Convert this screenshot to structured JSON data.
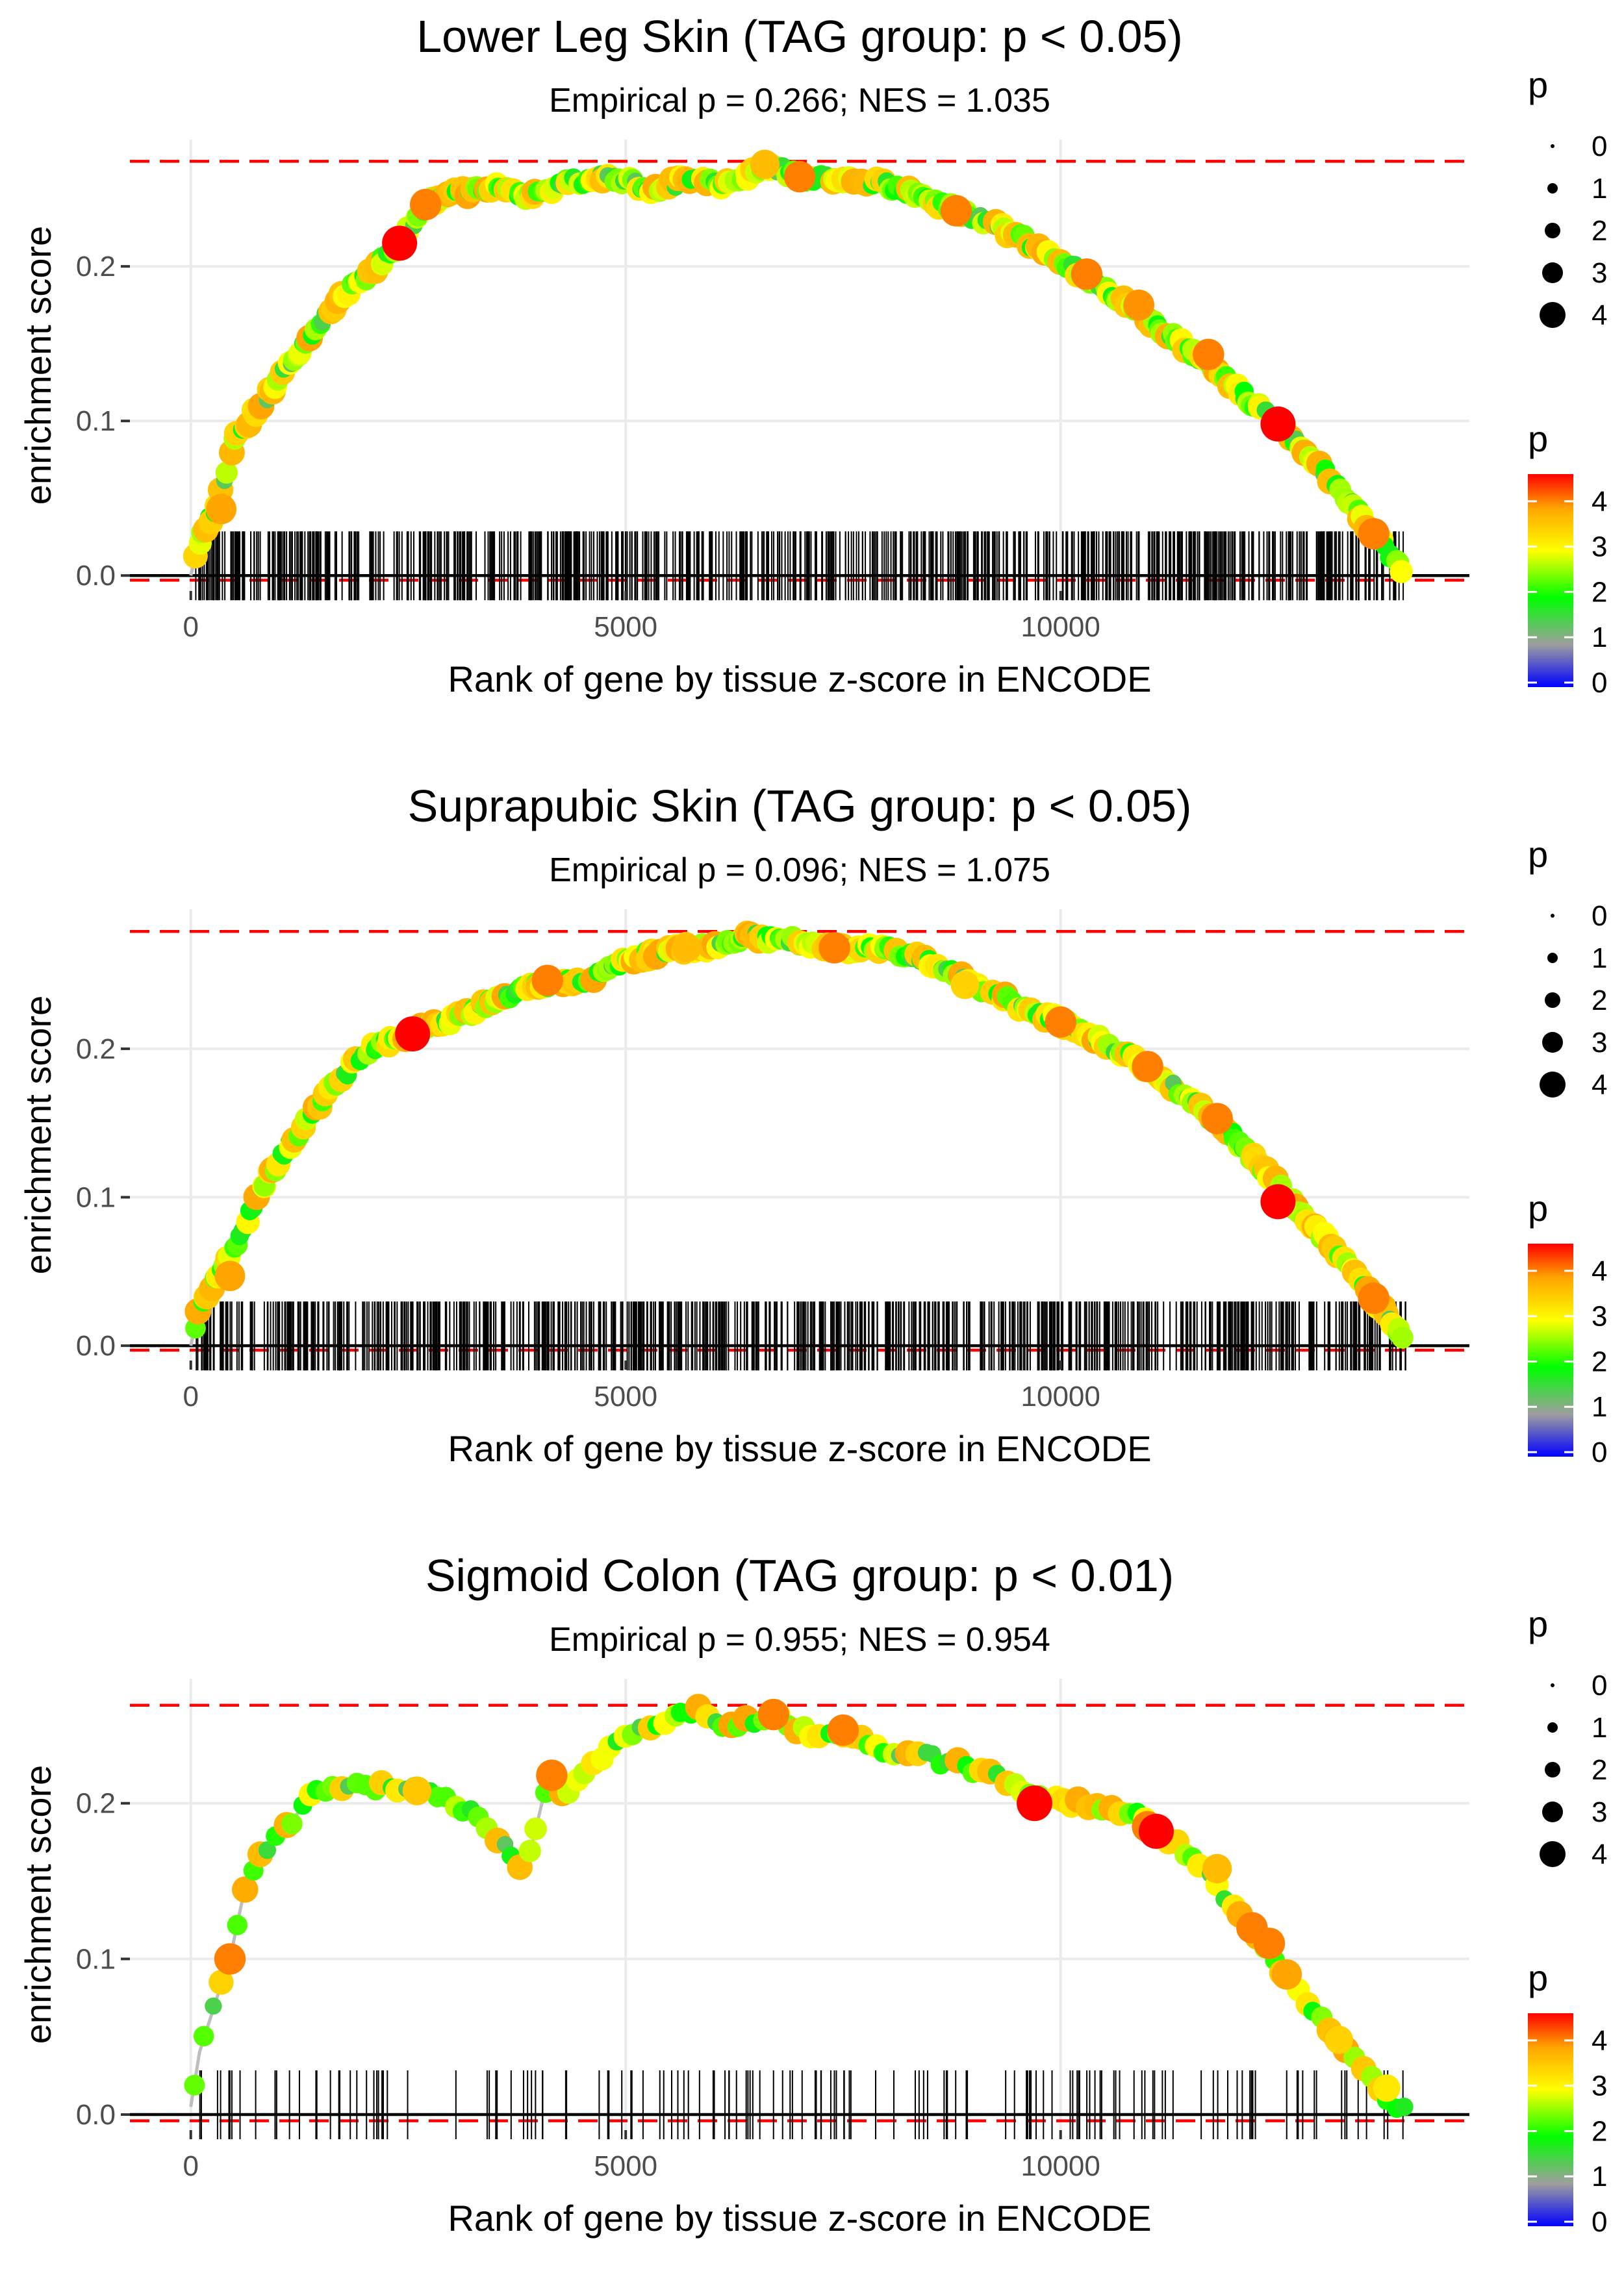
{
  "colors": {
    "threshold_line": "#ff0000",
    "zero_line": "#000000",
    "grid": "#ebebeb",
    "running_line": "#bebebe",
    "gradient": [
      "#0000ff",
      "#9e9e9e",
      "#00ff00",
      "#ffff00",
      "#ffa500",
      "#ff0000"
    ]
  },
  "chart_data": [
    {
      "type": "scatter",
      "title": "Lower Leg Skin (TAG group: p < 0.05)",
      "subtitle": "Empirical p = 0.266; NES = 1.035",
      "xlabel": "Rank of gene by tissue z-score in ENCODE",
      "ylabel": "enrichment score",
      "xlim": [
        -700,
        14700
      ],
      "ylim": [
        -0.01,
        0.282
      ],
      "x_ticks": [
        0,
        5000,
        10000
      ],
      "x_tick_labels": [
        "0",
        "5000",
        "10000"
      ],
      "y_ticks": [
        0.0,
        0.1,
        0.2
      ],
      "y_tick_labels": [
        "0.0",
        "0.1",
        "0.2"
      ],
      "max_es": 0.268,
      "min_es": -0.003,
      "n_max": 13980,
      "curve": [
        [
          0,
          0
        ],
        [
          100,
          0.022
        ],
        [
          300,
          0.045
        ],
        [
          500,
          0.088
        ],
        [
          900,
          0.118
        ],
        [
          1300,
          0.15
        ],
        [
          1700,
          0.178
        ],
        [
          2100,
          0.198
        ],
        [
          2400,
          0.215
        ],
        [
          2700,
          0.24
        ],
        [
          3000,
          0.246
        ],
        [
          3500,
          0.252
        ],
        [
          3900,
          0.245
        ],
        [
          4300,
          0.254
        ],
        [
          4800,
          0.258
        ],
        [
          5300,
          0.25
        ],
        [
          5800,
          0.258
        ],
        [
          6200,
          0.252
        ],
        [
          6600,
          0.266
        ],
        [
          7000,
          0.258
        ],
        [
          7500,
          0.256
        ],
        [
          8000,
          0.253
        ],
        [
          8500,
          0.243
        ],
        [
          9000,
          0.232
        ],
        [
          9500,
          0.22
        ],
        [
          10000,
          0.204
        ],
        [
          10500,
          0.186
        ],
        [
          11000,
          0.166
        ],
        [
          11500,
          0.145
        ],
        [
          12000,
          0.122
        ],
        [
          12500,
          0.098
        ],
        [
          13000,
          0.07
        ],
        [
          13500,
          0.035
        ],
        [
          13800,
          0.012
        ],
        [
          13980,
          0
        ]
      ],
      "highlights": [
        [
          350,
          0.043,
          3.6
        ],
        [
          2400,
          0.215,
          4.5
        ],
        [
          2700,
          0.24,
          3.8
        ],
        [
          6600,
          0.266,
          3.4
        ],
        [
          7000,
          0.258,
          3.8
        ],
        [
          8800,
          0.236,
          3.8
        ],
        [
          10300,
          0.195,
          3.8
        ],
        [
          10900,
          0.175,
          3.7
        ],
        [
          11700,
          0.143,
          3.8
        ],
        [
          12500,
          0.098,
          4.5
        ],
        [
          13600,
          0.027,
          3.8
        ]
      ],
      "n_points": 380,
      "n_ticks": 720,
      "seed": 11,
      "legend": {
        "size_title": "p",
        "size_labels": [
          "0",
          "1",
          "2",
          "3",
          "4"
        ],
        "color_title": "p",
        "color_labels": [
          "4",
          "3",
          "2",
          "1",
          "0"
        ]
      }
    },
    {
      "type": "scatter",
      "title": "Suprapubic Skin (TAG group: p < 0.05)",
      "subtitle": "Empirical p = 0.096; NES = 1.075",
      "xlabel": "Rank of gene by tissue z-score in ENCODE",
      "ylabel": "enrichment score",
      "xlim": [
        -700,
        14700
      ],
      "ylim": [
        -0.01,
        0.294
      ],
      "x_ticks": [
        0,
        5000,
        10000
      ],
      "x_tick_labels": [
        "0",
        "5000",
        "10000"
      ],
      "y_ticks": [
        0.0,
        0.1,
        0.2
      ],
      "y_tick_labels": [
        "0.0",
        "0.1",
        "0.2"
      ],
      "max_es": 0.279,
      "min_es": -0.003,
      "n_max": 14000,
      "curve": [
        [
          0,
          0
        ],
        [
          100,
          0.025
        ],
        [
          300,
          0.045
        ],
        [
          500,
          0.065
        ],
        [
          800,
          0.105
        ],
        [
          1200,
          0.14
        ],
        [
          1600,
          0.172
        ],
        [
          2000,
          0.198
        ],
        [
          2500,
          0.21
        ],
        [
          3000,
          0.22
        ],
        [
          3500,
          0.232
        ],
        [
          4000,
          0.243
        ],
        [
          4500,
          0.245
        ],
        [
          5000,
          0.258
        ],
        [
          5500,
          0.268
        ],
        [
          6000,
          0.268
        ],
        [
          6400,
          0.276
        ],
        [
          7000,
          0.272
        ],
        [
          7500,
          0.268
        ],
        [
          8000,
          0.268
        ],
        [
          8500,
          0.258
        ],
        [
          9000,
          0.243
        ],
        [
          9500,
          0.23
        ],
        [
          10000,
          0.218
        ],
        [
          10500,
          0.204
        ],
        [
          11000,
          0.188
        ],
        [
          11500,
          0.165
        ],
        [
          12000,
          0.14
        ],
        [
          12500,
          0.108
        ],
        [
          13000,
          0.075
        ],
        [
          13500,
          0.04
        ],
        [
          13900,
          0.008
        ],
        [
          14000,
          0
        ]
      ],
      "highlights": [
        [
          450,
          0.047,
          3.6
        ],
        [
          2550,
          0.21,
          4.5
        ],
        [
          4100,
          0.246,
          3.8
        ],
        [
          5700,
          0.268,
          3.4
        ],
        [
          7400,
          0.268,
          3.8
        ],
        [
          8900,
          0.243,
          3.2
        ],
        [
          10000,
          0.218,
          3.8
        ],
        [
          11000,
          0.188,
          3.8
        ],
        [
          11800,
          0.153,
          3.8
        ],
        [
          12500,
          0.097,
          4.5
        ],
        [
          13600,
          0.032,
          3.8
        ]
      ],
      "n_points": 380,
      "n_ticks": 760,
      "seed": 23,
      "legend": {
        "size_title": "p",
        "size_labels": [
          "0",
          "1",
          "2",
          "3",
          "4"
        ],
        "color_title": "p",
        "color_labels": [
          "4",
          "3",
          "2",
          "1",
          "0"
        ]
      }
    },
    {
      "type": "scatter",
      "title": "Sigmoid Colon (TAG group: p < 0.01)",
      "subtitle": "Empirical p = 0.955; NES = 0.954",
      "xlabel": "Rank of gene by tissue z-score in ENCODE",
      "ylabel": "enrichment score",
      "xlim": [
        -700,
        14700
      ],
      "ylim": [
        -0.01,
        0.28
      ],
      "x_ticks": [
        0,
        5000,
        10000
      ],
      "x_tick_labels": [
        "0",
        "5000",
        "10000"
      ],
      "y_ticks": [
        0.0,
        0.1,
        0.2
      ],
      "y_tick_labels": [
        "0.0",
        "0.1",
        "0.2"
      ],
      "max_es": 0.263,
      "min_es": -0.004,
      "n_max": 14000,
      "curve": [
        [
          0,
          0.005
        ],
        [
          100,
          0.04
        ],
        [
          300,
          0.075
        ],
        [
          450,
          0.1
        ],
        [
          600,
          0.14
        ],
        [
          800,
          0.165
        ],
        [
          1100,
          0.185
        ],
        [
          1400,
          0.205
        ],
        [
          1700,
          0.21
        ],
        [
          2000,
          0.212
        ],
        [
          2300,
          0.21
        ],
        [
          2600,
          0.208
        ],
        [
          3000,
          0.2
        ],
        [
          3200,
          0.195
        ],
        [
          3800,
          0.16
        ],
        [
          3900,
          0.168
        ],
        [
          4100,
          0.215
        ],
        [
          4300,
          0.205
        ],
        [
          4600,
          0.225
        ],
        [
          5000,
          0.245
        ],
        [
          5500,
          0.252
        ],
        [
          5800,
          0.262
        ],
        [
          6100,
          0.25
        ],
        [
          6400,
          0.252
        ],
        [
          6700,
          0.256
        ],
        [
          7100,
          0.245
        ],
        [
          7500,
          0.246
        ],
        [
          7900,
          0.235
        ],
        [
          8300,
          0.232
        ],
        [
          8800,
          0.225
        ],
        [
          9200,
          0.218
        ],
        [
          9700,
          0.205
        ],
        [
          10100,
          0.2
        ],
        [
          10500,
          0.198
        ],
        [
          10900,
          0.192
        ],
        [
          11200,
          0.18
        ],
        [
          11600,
          0.16
        ],
        [
          12100,
          0.125
        ],
        [
          12600,
          0.09
        ],
        [
          13100,
          0.055
        ],
        [
          13500,
          0.028
        ],
        [
          13750,
          0.012
        ],
        [
          14000,
          0
        ]
      ],
      "highlights": [
        [
          450,
          0.1,
          3.8
        ],
        [
          2600,
          0.208,
          3.3
        ],
        [
          4150,
          0.218,
          3.8
        ],
        [
          6700,
          0.257,
          3.8
        ],
        [
          7500,
          0.247,
          3.8
        ],
        [
          9700,
          0.2,
          4.6
        ],
        [
          11000,
          0.185,
          3.8
        ],
        [
          11100,
          0.182,
          4.5
        ],
        [
          11800,
          0.158,
          3.4
        ],
        [
          12200,
          0.12,
          3.8
        ],
        [
          12400,
          0.11,
          3.8
        ],
        [
          12600,
          0.09,
          3.6
        ],
        [
          13200,
          0.048,
          3.2
        ],
        [
          13750,
          0.017,
          3.0
        ]
      ],
      "n_points": 150,
      "n_ticks": 150,
      "seed": 37,
      "legend": {
        "size_title": "p",
        "size_labels": [
          "0",
          "1",
          "2",
          "3",
          "4"
        ],
        "color_title": "p",
        "color_labels": [
          "4",
          "3",
          "2",
          "1",
          "0"
        ]
      }
    }
  ]
}
